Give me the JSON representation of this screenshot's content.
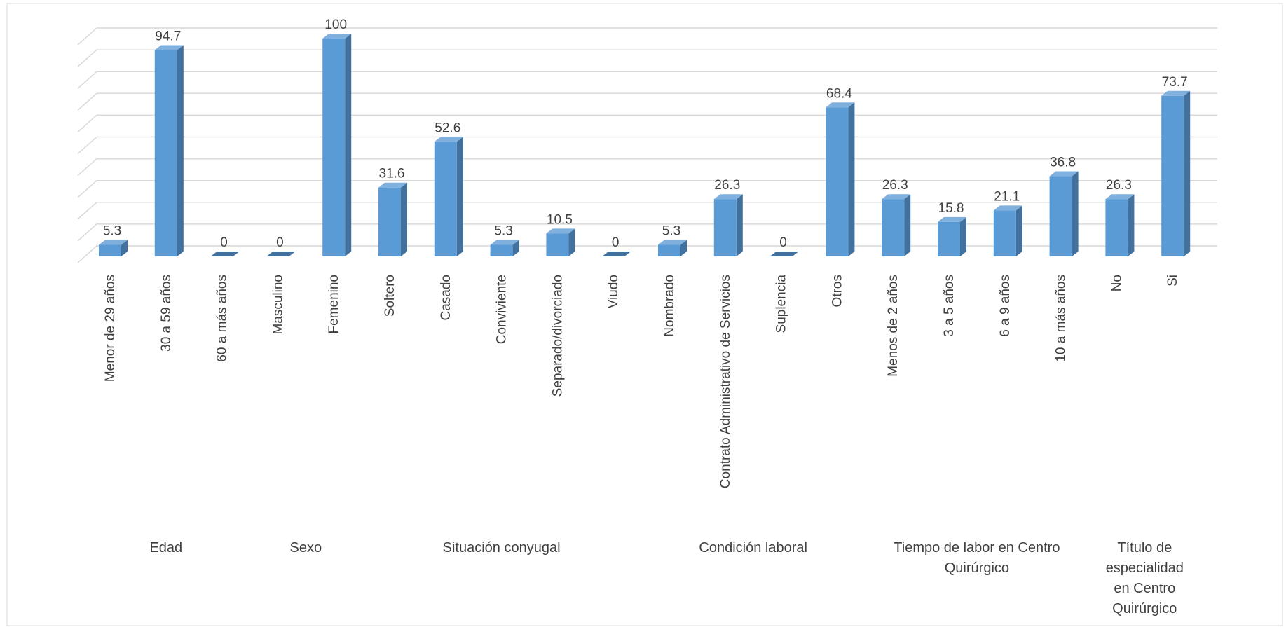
{
  "chart_data": {
    "type": "bar",
    "color": "#5b9bd5",
    "grid": true,
    "ylim": [
      0,
      100
    ],
    "yticks": [
      0,
      10,
      20,
      30,
      40,
      50,
      60,
      70,
      80,
      90,
      100
    ],
    "groups": [
      {
        "name": "Edad",
        "categories": [
          "Menor de 29 años",
          "30 a 59 años",
          "60 a más años"
        ],
        "values": [
          5.3,
          94.7,
          0
        ]
      },
      {
        "name": "Sexo",
        "categories": [
          "Masculino",
          "Femenino"
        ],
        "values": [
          0,
          100
        ]
      },
      {
        "name": "Situación conyugal",
        "categories": [
          "Soltero",
          "Casado",
          "Conviviente",
          "Separado/divorciado",
          "Viudo"
        ],
        "values": [
          31.6,
          52.6,
          5.3,
          10.5,
          0
        ]
      },
      {
        "name": "Condición laboral",
        "categories": [
          "Nombrado",
          "Contrato Administrativo de Servicios",
          "Suplencia",
          "Otros"
        ],
        "values": [
          5.3,
          26.3,
          0,
          68.4
        ]
      },
      {
        "name": "Tiempo de labor en Centro Quirúrgico",
        "categories": [
          "Menos de 2 años",
          "3 a 5 años",
          "6 a 9 años",
          "10 a más años"
        ],
        "values": [
          26.3,
          15.8,
          21.1,
          36.8
        ]
      },
      {
        "name": "Título de especialidad en Centro Quirúrgico",
        "categories": [
          "No",
          "Si"
        ],
        "values": [
          26.3,
          73.7
        ]
      }
    ]
  }
}
